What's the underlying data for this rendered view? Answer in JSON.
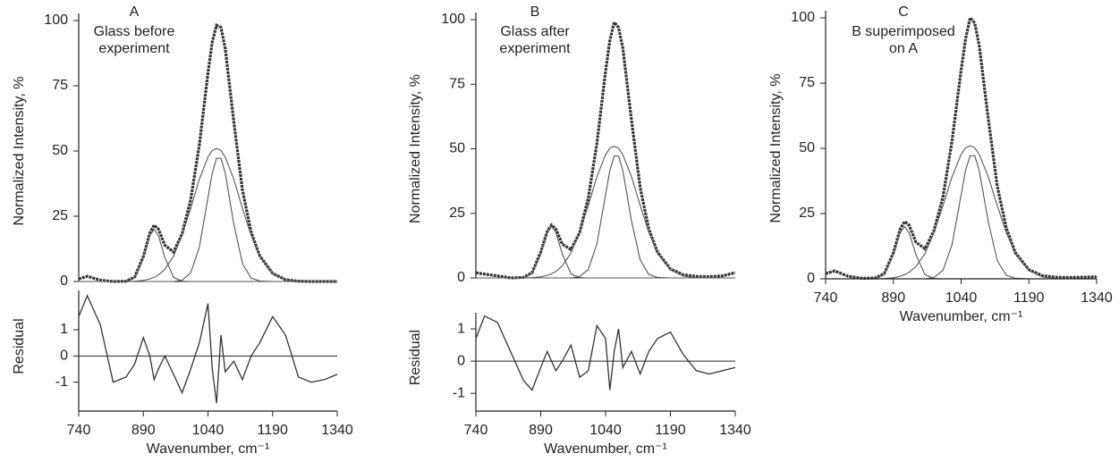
{
  "chart_data": [
    {
      "type": "line",
      "label": "A",
      "annotation": [
        "Glass before",
        "experiment"
      ],
      "ylabel": "Normalized Intensity, %",
      "xlabel": "Wavenumber, cm⁻¹",
      "x": [
        740,
        760,
        790,
        820,
        850,
        870,
        890,
        905,
        915,
        925,
        940,
        960,
        980,
        1000,
        1020,
        1040,
        1050,
        1060,
        1070,
        1080,
        1100,
        1120,
        1140,
        1160,
        1190,
        1220,
        1250,
        1280,
        1310,
        1340
      ],
      "series": [
        {
          "color": "#333333",
          "values": [
            1,
            2,
            0.5,
            0,
            0.1,
            1.7,
            9.6,
            18.6,
            21.6,
            20.1,
            13.9,
            11.3,
            18.3,
            31.4,
            52.4,
            79.9,
            91.8,
            98.2,
            97.4,
            89.3,
            61.2,
            35.1,
            19.0,
            9.9,
            3.1,
            0.7,
            0.1,
            0,
            0,
            0
          ]
        },
        {
          "color": "#555555",
          "values": [
            0,
            0,
            0,
            0,
            0.1,
            1.6,
            9.2,
            17.6,
            20,
            17.6,
            9.2,
            1.6,
            0.1,
            0,
            0,
            0,
            0,
            0,
            0,
            0,
            0,
            0,
            0,
            0,
            0,
            0,
            0,
            0,
            0,
            0
          ]
        },
        {
          "color": "#555555",
          "values": [
            0,
            0,
            0,
            0,
            0,
            0,
            0,
            0,
            0,
            0,
            0,
            0,
            0.5,
            3.3,
            13.2,
            32.2,
            41.6,
            47.2,
            47.2,
            41.6,
            22,
            7,
            1.3,
            0.2,
            0,
            0,
            0,
            0,
            0,
            0
          ]
        },
        {
          "color": "#555555",
          "values": [
            0,
            0,
            0,
            0,
            0,
            0.1,
            0.4,
            1,
            1.6,
            2.5,
            4.7,
            9.7,
            17.7,
            28.1,
            39.2,
            47.7,
            50.2,
            51,
            50.2,
            47.7,
            39.2,
            28.1,
            17.7,
            9.7,
            3.1,
            0.7,
            0.1,
            0,
            0,
            0
          ]
        }
      ],
      "xlim": [
        740,
        1340
      ],
      "xticks": [
        740,
        890,
        1040,
        1190,
        1340
      ],
      "ylim": [
        0,
        100
      ],
      "yticks": [
        0,
        25,
        50,
        75,
        100
      ],
      "residual": {
        "ylabel": "Residual",
        "ylim": [
          -2.1,
          2.5
        ],
        "yticks": [
          -1,
          0,
          1
        ],
        "values": [
          1.5,
          2.3,
          1.2,
          -1,
          -0.8,
          -0.3,
          0.7,
          0,
          -0.9,
          -0.5,
          0,
          -0.7,
          -1.4,
          -0.5,
          0.5,
          2,
          -0.5,
          -1.8,
          0.8,
          -0.6,
          -0.2,
          -0.9,
          0,
          0.5,
          1.5,
          0.8,
          -0.8,
          -1,
          -0.9,
          -0.7
        ]
      }
    },
    {
      "type": "line",
      "label": "B",
      "annotation": [
        "Glass after",
        "experiment"
      ],
      "ylabel": "Normalized Intensity, %",
      "xlabel": "Wavenumber, cm⁻¹",
      "x": [
        740,
        760,
        790,
        820,
        850,
        870,
        890,
        905,
        915,
        925,
        940,
        960,
        980,
        1000,
        1020,
        1040,
        1050,
        1060,
        1070,
        1080,
        1100,
        1120,
        1140,
        1160,
        1190,
        1220,
        1250,
        1280,
        1310,
        1340
      ],
      "series": [
        {
          "color": "#333333",
          "values": [
            2,
            1.5,
            0.8,
            0,
            0.2,
            2,
            10,
            18,
            20.5,
            19,
            13,
            11,
            17.5,
            31,
            52,
            80,
            92,
            99,
            97,
            89,
            61,
            35,
            19,
            10,
            3.5,
            1.2,
            0.6,
            0.5,
            0.8,
            2
          ]
        },
        {
          "color": "#555555",
          "values": [
            0,
            0,
            0,
            0,
            0.1,
            1.6,
            9.2,
            17.6,
            20,
            17.6,
            9.2,
            1.6,
            0.1,
            0,
            0,
            0,
            0,
            0,
            0,
            0,
            0,
            0,
            0,
            0,
            0,
            0,
            0,
            0,
            0,
            0
          ]
        },
        {
          "color": "#555555",
          "values": [
            0,
            0,
            0,
            0,
            0,
            0,
            0,
            0,
            0,
            0,
            0,
            0,
            0.5,
            3.3,
            13.2,
            32.2,
            41.6,
            47.2,
            47.2,
            41.6,
            22,
            7,
            1.3,
            0.2,
            0,
            0,
            0,
            0,
            0,
            0
          ]
        },
        {
          "color": "#555555",
          "values": [
            0,
            0,
            0,
            0,
            0,
            0.1,
            0.4,
            1,
            1.6,
            2.5,
            4.7,
            9.7,
            17.7,
            28.1,
            39.2,
            47.7,
            50.2,
            51,
            50.2,
            47.7,
            39.2,
            28.1,
            17.7,
            9.7,
            3.1,
            0.7,
            0.1,
            0,
            0,
            0
          ]
        }
      ],
      "xlim": [
        740,
        1340
      ],
      "xticks": [
        740,
        890,
        1040,
        1190,
        1340
      ],
      "ylim": [
        0,
        100
      ],
      "yticks": [
        0,
        25,
        50,
        75,
        100
      ],
      "residual": {
        "ylabel": "Residual",
        "ylim": [
          -1.55,
          1.5
        ],
        "yticks": [
          -1,
          0,
          1
        ],
        "values": [
          0.7,
          1.4,
          1.2,
          0.3,
          -0.6,
          -0.9,
          -0.2,
          0.3,
          0,
          -0.3,
          0,
          0.5,
          -0.5,
          -0.3,
          1.1,
          0.7,
          -0.9,
          0.3,
          1,
          -0.2,
          0.3,
          -0.4,
          0.3,
          0.7,
          0.9,
          0.2,
          -0.3,
          -0.4,
          -0.3,
          -0.2
        ]
      }
    },
    {
      "type": "line",
      "label": "C",
      "annotation": [
        "B superimposed",
        "on A"
      ],
      "ylabel": "Normalized Intensity, %",
      "xlabel": "Wavenumber, cm⁻¹",
      "x": [
        740,
        760,
        790,
        820,
        850,
        870,
        890,
        905,
        915,
        925,
        940,
        960,
        980,
        1000,
        1020,
        1040,
        1050,
        1060,
        1070,
        1080,
        1100,
        1120,
        1140,
        1160,
        1190,
        1220,
        1250,
        1280,
        1310,
        1340
      ],
      "series": [
        {
          "color": "#333333",
          "values": [
            2,
            3,
            1,
            0.2,
            0.3,
            2,
            10,
            19,
            22,
            20.5,
            14,
            11.5,
            18.5,
            31.5,
            53,
            80,
            92,
            100,
            98,
            89.5,
            61.5,
            35.5,
            19.5,
            10,
            3.5,
            1.2,
            0.6,
            0.5,
            0.6,
            0.8
          ]
        },
        {
          "color": "#555555",
          "values": [
            0,
            0,
            0,
            0,
            0.1,
            1.6,
            9.2,
            17.6,
            20,
            17.6,
            9.2,
            1.6,
            0.1,
            0,
            0,
            0,
            0,
            0,
            0,
            0,
            0,
            0,
            0,
            0,
            0,
            0,
            0,
            0,
            0,
            0
          ]
        },
        {
          "color": "#555555",
          "values": [
            0,
            0,
            0,
            0,
            0,
            0,
            0,
            0,
            0,
            0,
            0,
            0,
            0.5,
            3.3,
            13.2,
            32.2,
            41.6,
            47.2,
            47.2,
            41.6,
            22,
            7,
            1.3,
            0.2,
            0,
            0,
            0,
            0,
            0,
            0
          ]
        },
        {
          "color": "#555555",
          "values": [
            0,
            0,
            0,
            0,
            0,
            0.1,
            0.4,
            1,
            1.6,
            2.5,
            4.7,
            9.7,
            17.7,
            28.1,
            39.2,
            47.7,
            50.2,
            51,
            50.2,
            47.7,
            39.2,
            28.1,
            17.7,
            9.7,
            3.1,
            0.7,
            0.1,
            0,
            0,
            0
          ]
        }
      ],
      "xlim": [
        740,
        1340
      ],
      "xticks": [
        740,
        890,
        1040,
        1190,
        1340
      ],
      "ylim": [
        0,
        100
      ],
      "yticks": [
        0,
        25,
        50,
        75,
        100
      ]
    }
  ]
}
